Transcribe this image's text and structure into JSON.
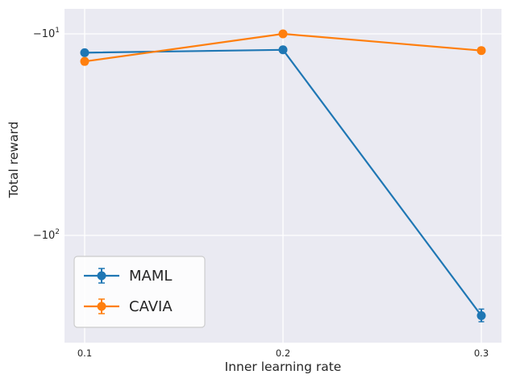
{
  "chart_data": {
    "type": "line",
    "title": "",
    "xlabel": "Inner learning rate",
    "ylabel": "Total reward",
    "x": [
      0.1,
      0.2,
      0.3
    ],
    "xticks": [
      {
        "value": 0.1,
        "label": "0.1"
      },
      {
        "value": 0.2,
        "label": "0.2"
      },
      {
        "value": 0.3,
        "label": "0.3"
      }
    ],
    "yscale": "negative-log10",
    "yticks": [
      {
        "value": -10,
        "base": "−10",
        "exp": "1"
      },
      {
        "value": -100,
        "base": "−10",
        "exp": "2"
      }
    ],
    "ylim": [
      -8.5,
      -400
    ],
    "grid": true,
    "series": [
      {
        "name": "MAML",
        "color": "#1f77b4",
        "values": [
          -12.4,
          -12.0,
          -250
        ],
        "yerr": [
          0.4,
          0.4,
          18
        ]
      },
      {
        "name": "CAVIA",
        "color": "#ff7f0e",
        "values": [
          -13.7,
          -10.0,
          -12.1
        ],
        "yerr": [
          0.5,
          0.3,
          0.4
        ]
      }
    ],
    "legend": {
      "position": "lower-left",
      "entries": [
        "MAML",
        "CAVIA"
      ]
    },
    "style": {
      "plot_bg": "#eaeaf2",
      "grid_color": "#ffffff",
      "text_color": "#262626",
      "legend_bg": "#ffffff",
      "legend_border": "#cccccc"
    }
  }
}
